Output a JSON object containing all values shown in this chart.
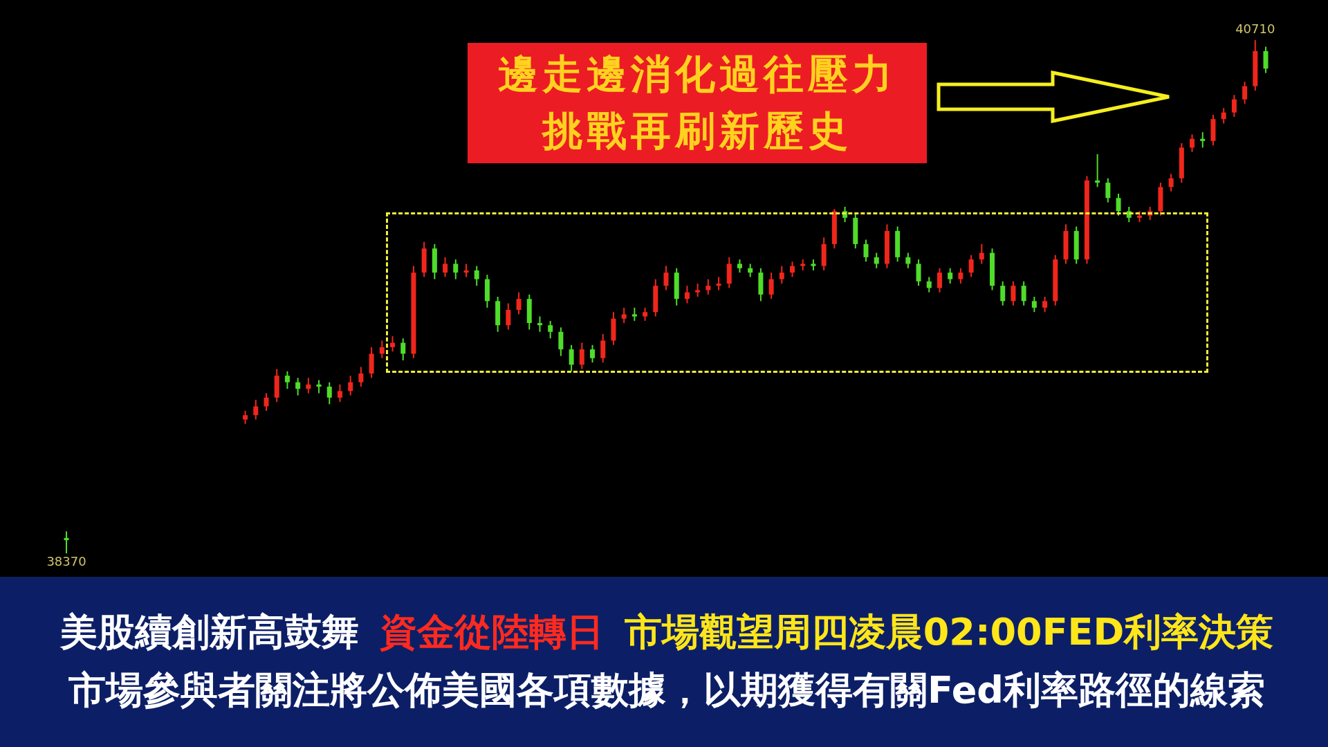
{
  "chart_data": {
    "type": "candlestick",
    "categories": [
      null,
      null,
      null,
      null,
      null,
      null,
      null,
      null,
      null,
      null,
      null,
      null,
      null,
      null,
      null,
      null,
      null,
      null,
      null,
      null,
      null,
      null,
      null,
      null,
      null,
      null,
      null,
      null,
      null,
      null,
      null,
      null,
      null,
      null,
      null,
      null,
      null,
      null,
      null,
      null,
      null,
      null,
      null,
      null,
      null,
      null,
      null,
      null,
      null,
      null,
      null,
      null,
      null,
      null,
      null,
      null,
      null,
      null,
      null,
      null,
      null,
      null,
      null,
      null,
      null,
      null,
      null,
      null,
      null,
      null,
      null,
      null,
      null,
      null,
      null,
      null,
      null,
      null,
      null,
      null,
      null,
      null,
      null,
      null,
      null,
      null,
      null,
      null,
      null,
      null,
      null,
      null,
      null,
      null,
      null,
      null,
      null,
      null,
      null,
      null,
      null,
      null,
      null,
      null,
      null,
      null,
      null,
      null,
      null,
      null,
      null,
      null,
      null,
      null,
      null
    ],
    "ohlc": [
      [
        38440,
        38470,
        38370,
        38430
      ],
      null,
      null,
      null,
      null,
      null,
      null,
      null,
      null,
      null,
      null,
      null,
      null,
      null,
      null,
      null,
      null,
      [
        38980,
        39020,
        38960,
        39000
      ],
      [
        39000,
        39070,
        38980,
        39040
      ],
      [
        39040,
        39100,
        39020,
        39080
      ],
      [
        39080,
        39210,
        39060,
        39180
      ],
      [
        39180,
        39200,
        39120,
        39150
      ],
      [
        39150,
        39170,
        39090,
        39120
      ],
      [
        39120,
        39170,
        39100,
        39140
      ],
      [
        39140,
        39160,
        39100,
        39130
      ],
      [
        39130,
        39150,
        39050,
        39080
      ],
      [
        39080,
        39140,
        39060,
        39110
      ],
      [
        39110,
        39180,
        39090,
        39150
      ],
      [
        39150,
        39220,
        39130,
        39190
      ],
      [
        39190,
        39310,
        39170,
        39280
      ],
      [
        39280,
        39340,
        39260,
        39310
      ],
      [
        39310,
        39360,
        39290,
        39330
      ],
      [
        39330,
        39350,
        39250,
        39280
      ],
      [
        39280,
        39680,
        39260,
        39650
      ],
      [
        39650,
        39790,
        39630,
        39760
      ],
      [
        39760,
        39780,
        39620,
        39650
      ],
      [
        39650,
        39720,
        39630,
        39690
      ],
      [
        39690,
        39710,
        39620,
        39650
      ],
      [
        39650,
        39690,
        39630,
        39660
      ],
      [
        39660,
        39680,
        39590,
        39620
      ],
      [
        39620,
        39640,
        39490,
        39520
      ],
      [
        39520,
        39540,
        39380,
        39410
      ],
      [
        39410,
        39510,
        39390,
        39480
      ],
      [
        39480,
        39560,
        39460,
        39530
      ],
      [
        39530,
        39550,
        39390,
        39420
      ],
      [
        39420,
        39450,
        39380,
        39410
      ],
      [
        39410,
        39430,
        39350,
        39380
      ],
      [
        39380,
        39400,
        39270,
        39300
      ],
      [
        39300,
        39320,
        39200,
        39230
      ],
      [
        39230,
        39330,
        39210,
        39300
      ],
      [
        39300,
        39320,
        39240,
        39260
      ],
      [
        39260,
        39370,
        39240,
        39340
      ],
      [
        39340,
        39470,
        39320,
        39440
      ],
      [
        39440,
        39490,
        39420,
        39460
      ],
      [
        39460,
        39490,
        39430,
        39450
      ],
      [
        39450,
        39490,
        39430,
        39470
      ],
      [
        39470,
        39620,
        39450,
        39590
      ],
      [
        39590,
        39680,
        39570,
        39650
      ],
      [
        39650,
        39670,
        39500,
        39530
      ],
      [
        39530,
        39590,
        39510,
        39560
      ],
      [
        39560,
        39600,
        39540,
        39570
      ],
      [
        39570,
        39620,
        39550,
        39590
      ],
      [
        39590,
        39630,
        39570,
        39600
      ],
      [
        39600,
        39720,
        39580,
        39690
      ],
      [
        39690,
        39710,
        39650,
        39670
      ],
      [
        39670,
        39690,
        39630,
        39650
      ],
      [
        39650,
        39670,
        39520,
        39550
      ],
      [
        39550,
        39650,
        39530,
        39620
      ],
      [
        39620,
        39680,
        39600,
        39650
      ],
      [
        39650,
        39700,
        39630,
        39680
      ],
      [
        39680,
        39710,
        39660,
        39690
      ],
      [
        39690,
        39710,
        39660,
        39680
      ],
      [
        39680,
        39810,
        39660,
        39780
      ],
      [
        39780,
        39940,
        39760,
        39930
      ],
      [
        39930,
        39950,
        39880,
        39900
      ],
      [
        39900,
        39920,
        39760,
        39780
      ],
      [
        39780,
        39800,
        39700,
        39720
      ],
      [
        39720,
        39740,
        39670,
        39690
      ],
      [
        39690,
        39870,
        39670,
        39840
      ],
      [
        39840,
        39860,
        39700,
        39720
      ],
      [
        39720,
        39740,
        39670,
        39690
      ],
      [
        39690,
        39710,
        39590,
        39610
      ],
      [
        39610,
        39630,
        39560,
        39580
      ],
      [
        39580,
        39670,
        39560,
        39650
      ],
      [
        39650,
        39670,
        39600,
        39620
      ],
      [
        39620,
        39670,
        39600,
        39650
      ],
      [
        39650,
        39730,
        39630,
        39710
      ],
      [
        39710,
        39780,
        39690,
        39740
      ],
      [
        39740,
        39760,
        39570,
        39590
      ],
      [
        39590,
        39610,
        39500,
        39520
      ],
      [
        39520,
        39610,
        39500,
        39590
      ],
      [
        39590,
        39610,
        39500,
        39520
      ],
      [
        39520,
        39540,
        39470,
        39490
      ],
      [
        39490,
        39540,
        39470,
        39520
      ],
      [
        39520,
        39730,
        39500,
        39710
      ],
      [
        39710,
        39870,
        39690,
        39840
      ],
      [
        39840,
        39860,
        39690,
        39710
      ],
      [
        39710,
        40090,
        39690,
        40070
      ],
      [
        40070,
        40190,
        40040,
        40060
      ],
      [
        40060,
        40080,
        39970,
        39990
      ],
      [
        39990,
        40010,
        39910,
        39930
      ],
      [
        39930,
        39950,
        39880,
        39900
      ],
      [
        39900,
        39930,
        39880,
        39910
      ],
      [
        39910,
        39950,
        39890,
        39930
      ],
      [
        39930,
        40060,
        39910,
        40040
      ],
      [
        40040,
        40100,
        40020,
        40080
      ],
      [
        40080,
        40240,
        40060,
        40220
      ],
      [
        40220,
        40280,
        40200,
        40260
      ],
      [
        40260,
        40290,
        40220,
        40250
      ],
      [
        40250,
        40370,
        40230,
        40350
      ],
      [
        40350,
        40400,
        40330,
        40380
      ],
      [
        40380,
        40460,
        40360,
        40440
      ],
      [
        40440,
        40520,
        40420,
        40500
      ],
      [
        40500,
        40710,
        40480,
        40660
      ],
      [
        40660,
        40680,
        40560,
        40580
      ]
    ],
    "annotations": [
      "邊走邊消化過往壓力",
      "挑戰再刷新歷史",
      "美股續創新高鼓舞",
      "資金從陸轉日",
      "市場觀望周四凌晨02:00FED利率決策",
      "市場參與者關注將公佈美國各項數據，以期獲得有關Fed利率路徑的線索",
      "40710",
      "38370"
    ]
  }
}
